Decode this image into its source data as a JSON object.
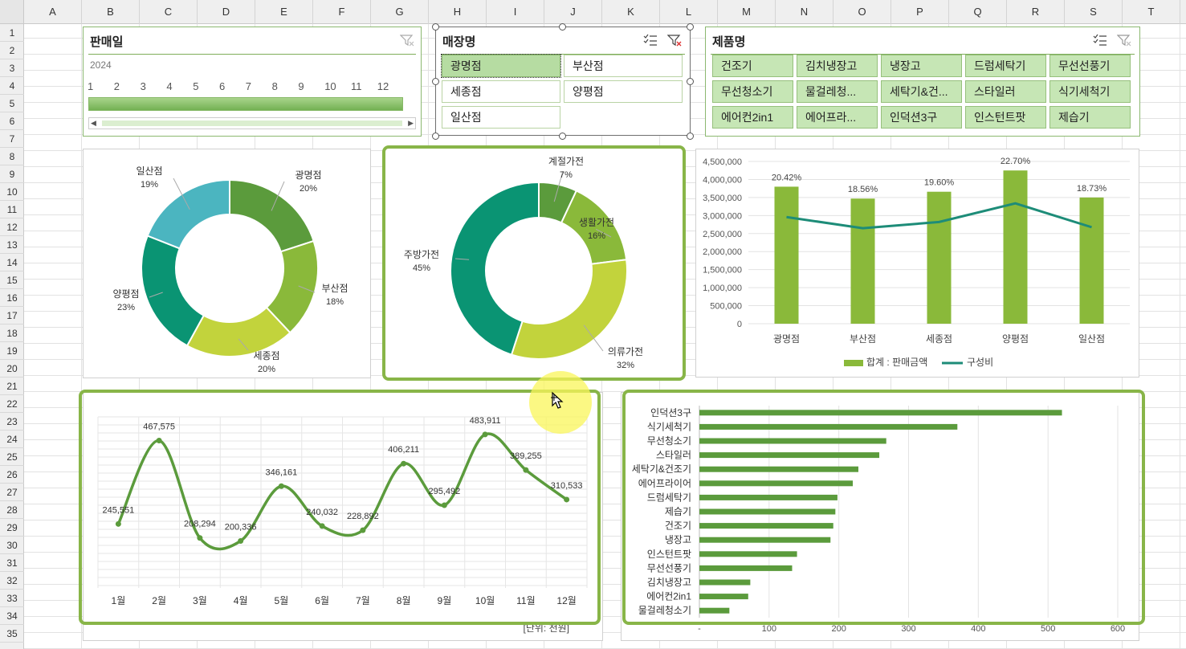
{
  "columns": [
    "A",
    "B",
    "C",
    "D",
    "E",
    "F",
    "G",
    "H",
    "I",
    "J",
    "K",
    "L",
    "M",
    "N",
    "O",
    "P",
    "Q",
    "R",
    "S",
    "T"
  ],
  "rows": [
    "1",
    "2",
    "3",
    "4",
    "5",
    "6",
    "7",
    "8",
    "9",
    "10",
    "11",
    "12",
    "13",
    "14",
    "15",
    "16",
    "17",
    "18",
    "19",
    "20",
    "21",
    "22",
    "23",
    "24",
    "25",
    "26",
    "27",
    "28",
    "29",
    "30",
    "31",
    "32",
    "33",
    "34",
    "35"
  ],
  "timeline": {
    "title": "판매일",
    "year": "2024",
    "months": [
      "1",
      "2",
      "3",
      "4",
      "5",
      "6",
      "7",
      "8",
      "9",
      "10",
      "11",
      "12"
    ],
    "selection_fraction": 1.0
  },
  "store_slicer": {
    "title": "매장명",
    "items": [
      {
        "label": "광명점",
        "selected": true
      },
      {
        "label": "부산점",
        "selected": false
      },
      {
        "label": "세종점",
        "selected": false
      },
      {
        "label": "양평점",
        "selected": false
      },
      {
        "label": "일산점",
        "selected": false
      }
    ]
  },
  "product_slicer": {
    "title": "제품명",
    "items": [
      "건조기",
      "김치냉장고",
      "냉장고",
      "드럼세탁기",
      "무선선풍기",
      "무선청소기",
      "물걸레청...",
      "세탁기&건...",
      "스타일러",
      "식기세척기",
      "에어컨2in1",
      "에어프라...",
      "인덕션3구",
      "인스턴트팟",
      "제습기"
    ]
  },
  "colors": {
    "green_dark": "#5b9b3c",
    "green_mid": "#8ab93a",
    "lime": "#c2d33c",
    "teal": "#0a9473",
    "teal_light": "#4bb5c0",
    "line_teal": "#1d8c78"
  },
  "chart_data": [
    {
      "type": "pie",
      "donut": true,
      "labels": [
        "광명점",
        "부산점",
        "세종점",
        "양평점",
        "일산점"
      ],
      "percent_labels": [
        "20%",
        "18%",
        "20%",
        "23%",
        "19%"
      ],
      "values": [
        20,
        18,
        20,
        23,
        19
      ],
      "colors": [
        "#5b9b3c",
        "#8ab93a",
        "#c2d33c",
        "#0a9473",
        "#4bb5c0"
      ]
    },
    {
      "type": "pie",
      "donut": true,
      "labels": [
        "계절가전",
        "생활가전",
        "의류가전",
        "주방가전"
      ],
      "percent_labels": [
        "7%",
        "16%",
        "32%",
        "45%"
      ],
      "values": [
        7,
        16,
        32,
        45
      ],
      "colors": [
        "#5b9b3c",
        "#8ab93a",
        "#c2d33c",
        "#0a9473"
      ]
    },
    {
      "type": "bar",
      "combo": true,
      "categories": [
        "광명점",
        "부산점",
        "세종점",
        "양평점",
        "일산점"
      ],
      "series": [
        {
          "name": "합계 : 판매금액",
          "type": "bar",
          "values": [
            3800000,
            3470000,
            3660000,
            4250000,
            3500000
          ]
        },
        {
          "name": "구성비",
          "type": "line",
          "values": [
            20.42,
            18.56,
            19.6,
            22.7,
            18.73
          ],
          "labels": [
            "20.42%",
            "18.56%",
            "19.60%",
            "22.70%",
            "18.73%"
          ]
        }
      ],
      "yticks": [
        "4,500,000",
        "4,000,000",
        "3,500,000",
        "3,000,000",
        "2,500,000",
        "2,000,000",
        "1,500,000",
        "1,000,000",
        "500,000",
        "0"
      ],
      "ylim": [
        0,
        4500000
      ],
      "legend": "bottom"
    },
    {
      "type": "line",
      "smooth": true,
      "categories": [
        "1월",
        "2월",
        "3월",
        "4월",
        "5월",
        "6월",
        "7월",
        "8월",
        "9월",
        "10월",
        "11월",
        "12월"
      ],
      "values": [
        245551,
        467575,
        208294,
        200336,
        346161,
        240032,
        228892,
        406211,
        295492,
        483911,
        389255,
        310533
      ],
      "value_labels": [
        "245,551",
        "467,575",
        "208,294",
        "200,336",
        "346,161",
        "240,032",
        "228,892",
        "406,211",
        "295,492",
        "483,911",
        "389,255",
        "310,533"
      ],
      "ylim": [
        0,
        600000
      ],
      "unit_note": "[단위: 천원]"
    },
    {
      "type": "bar",
      "orientation": "horizontal",
      "categories": [
        "인덕션3구",
        "식기세척기",
        "무선청소기",
        "스타일러",
        "세탁기&건조기",
        "에어프라이어",
        "드럼세탁기",
        "제습기",
        "건조기",
        "냉장고",
        "인스턴트팟",
        "무선선풍기",
        "김치냉장고",
        "에어컨2in1",
        "물걸레청소기"
      ],
      "values": [
        520,
        370,
        268,
        258,
        228,
        220,
        198,
        195,
        192,
        188,
        140,
        133,
        73,
        70,
        43
      ],
      "xticks": [
        "-",
        "100",
        "200",
        "300",
        "400",
        "500",
        "600"
      ],
      "xlim": [
        0,
        600
      ]
    }
  ]
}
